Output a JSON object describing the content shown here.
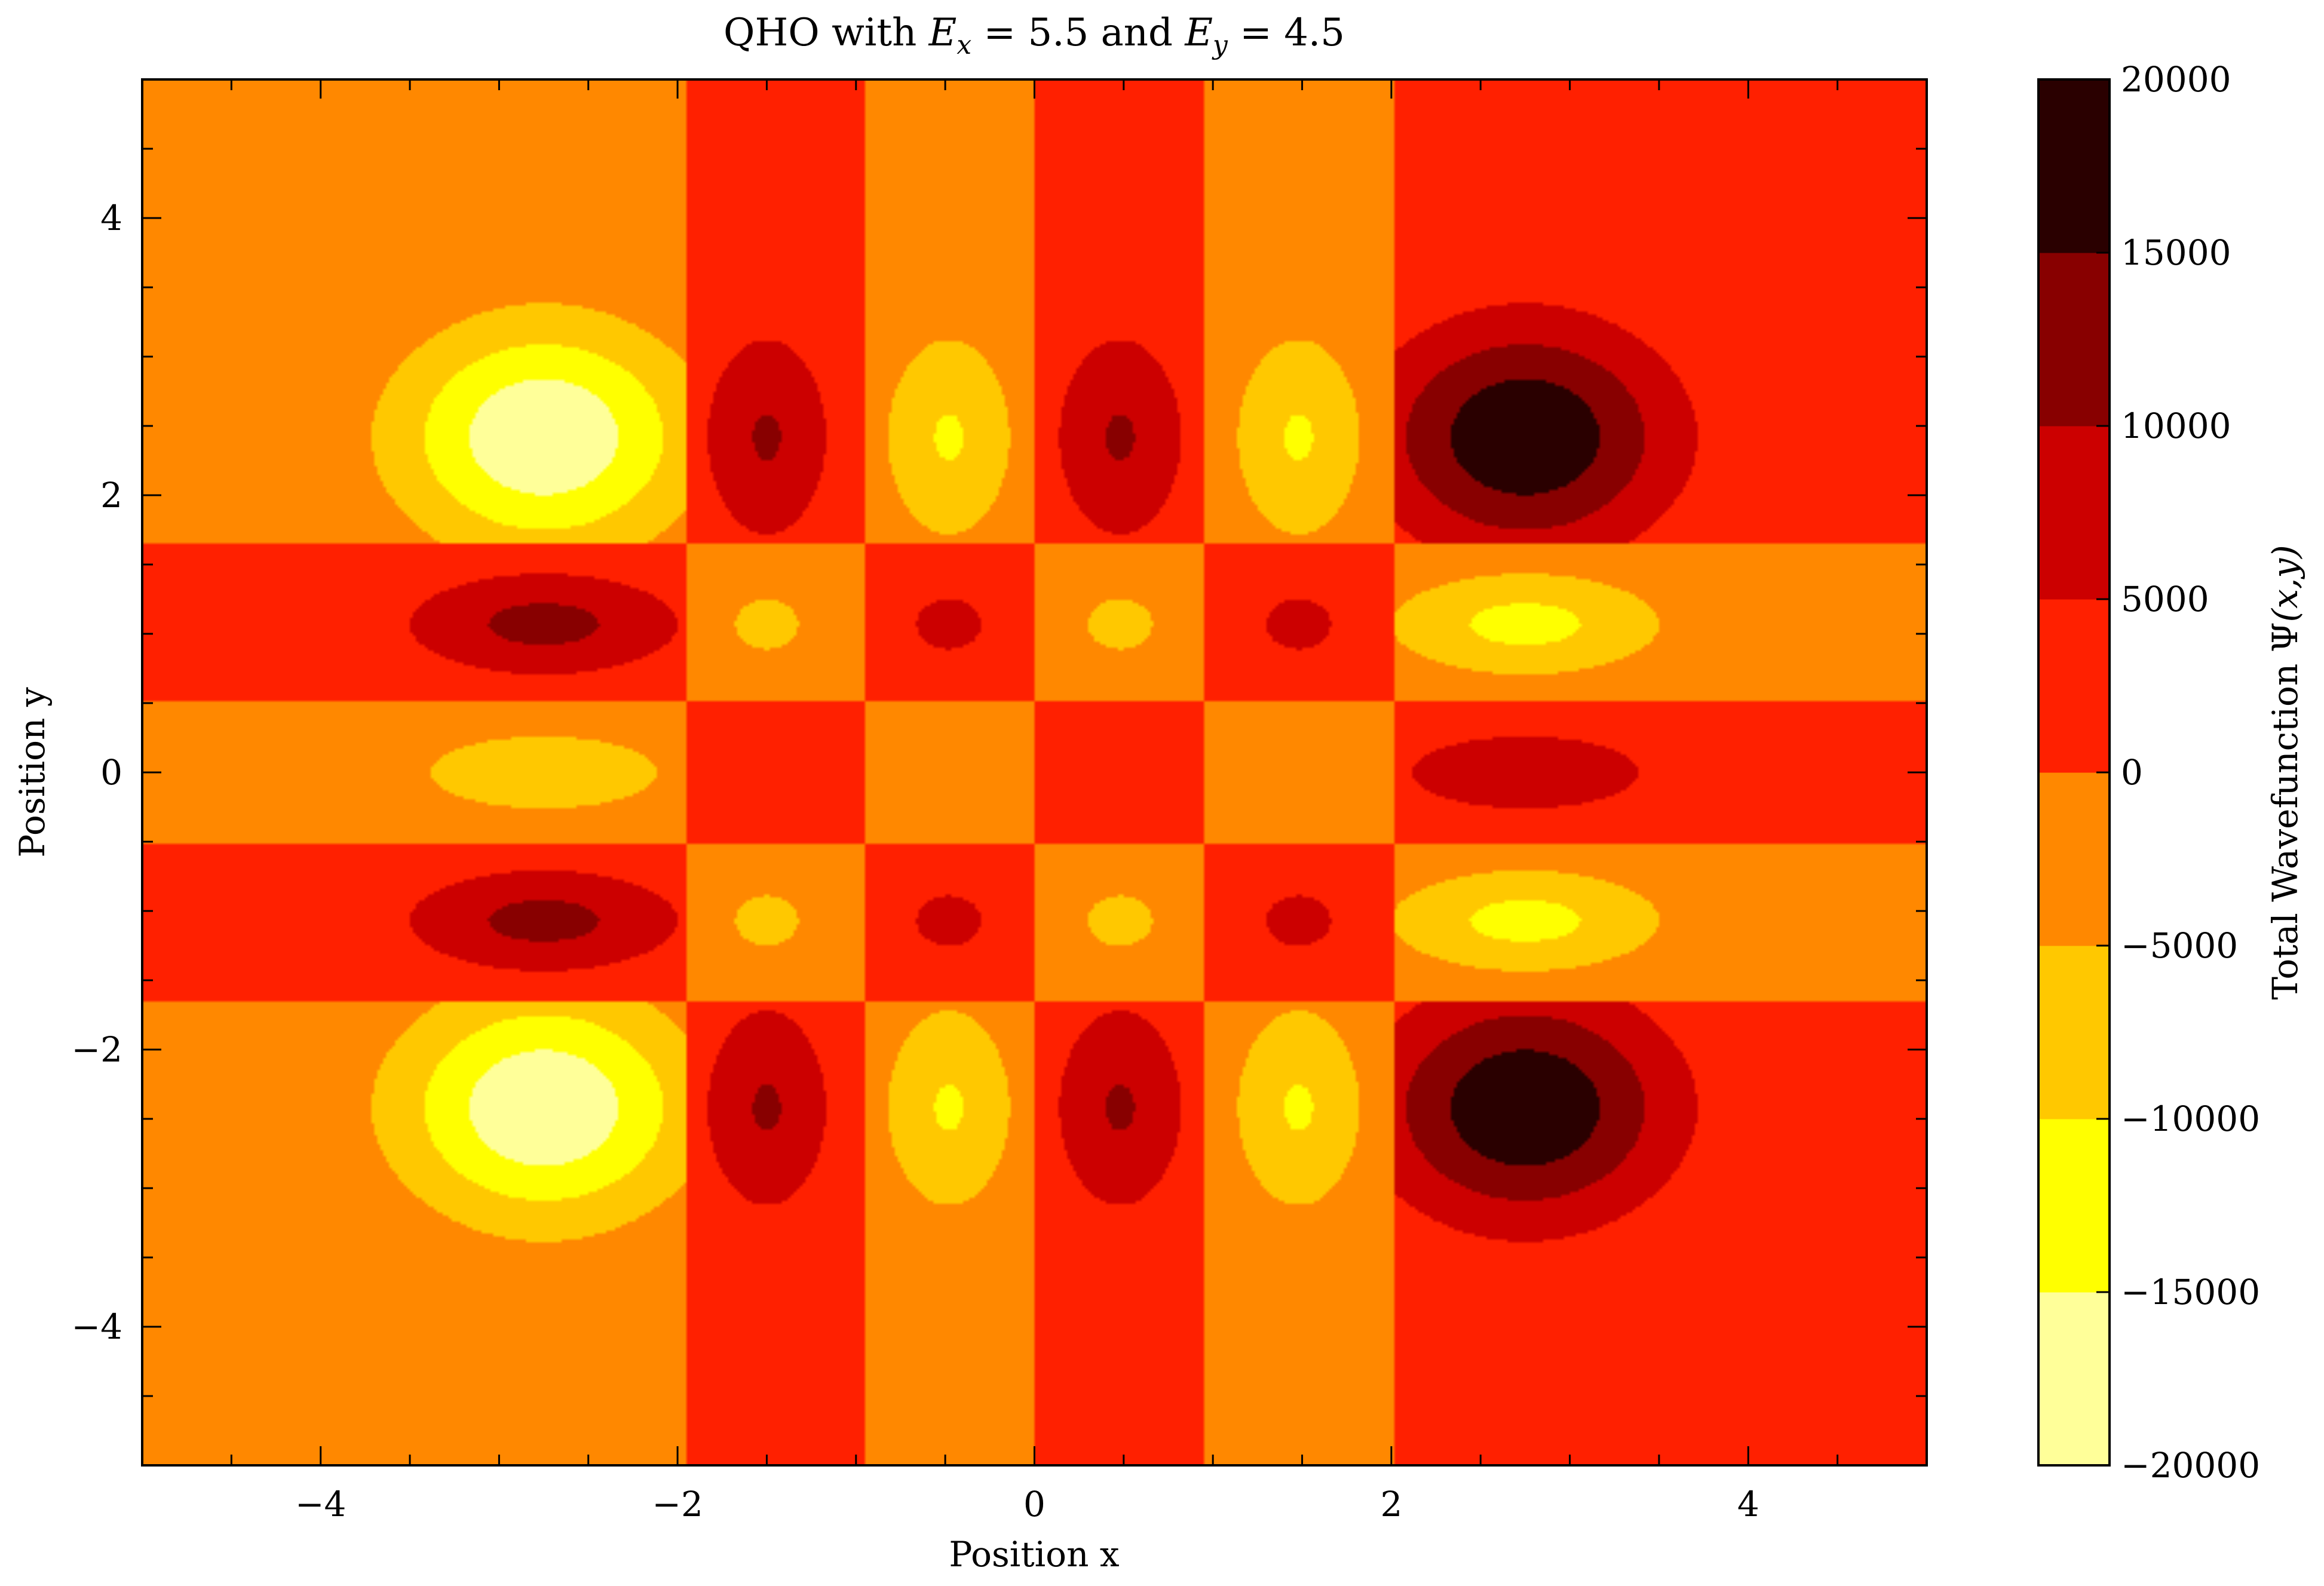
{
  "chart_data": {
    "type": "heatmap",
    "subtype": "filled-contour",
    "title": {
      "prefix": "QHO with ",
      "ex_symbol": "E",
      "ex_sub": "x",
      "ex_value": " = 5.5",
      "joiner": " and ",
      "ey_symbol": "E",
      "ey_sub": "y",
      "ey_value": " = 4.5"
    },
    "xlabel": "Position x",
    "ylabel": "Position y",
    "colorbar_label": {
      "text": "Total Wavefunction Ψ",
      "args": "(x,y)"
    },
    "xlim": [
      -5,
      5
    ],
    "ylim": [
      -5,
      5
    ],
    "x_ticks": [
      -4,
      -2,
      0,
      2,
      4
    ],
    "x_tick_labels": [
      "−4",
      "−2",
      "0",
      "2",
      "4"
    ],
    "y_ticks": [
      -4,
      -2,
      0,
      2,
      4
    ],
    "y_tick_labels": [
      "−4",
      "−2",
      "0",
      "2",
      "4"
    ],
    "colorbar_ticks": [
      20000,
      15000,
      10000,
      5000,
      0,
      -5000,
      -10000,
      -15000,
      -20000
    ],
    "colorbar_tick_labels": [
      "20000",
      "15000",
      "10000",
      "5000",
      "0",
      "−5000",
      "−10000",
      "−15000",
      "−20000"
    ],
    "levels": [
      -20000,
      -15000,
      -10000,
      -5000,
      0,
      5000,
      10000,
      15000,
      20000
    ],
    "level_colors": [
      "#ffff99",
      "#ffff00",
      "#ffc800",
      "#ff8800",
      "#ff2000",
      "#cc0000",
      "#880000",
      "#2a0000"
    ],
    "colormap": "hot_r",
    "x_column_bounds": [
      -5,
      -1.95,
      -0.95,
      0,
      0.95,
      2.02,
      5
    ],
    "y_row_bounds": [
      -5,
      -1.65,
      -0.52,
      0.52,
      1.65,
      5
    ],
    "x_lobe_centers": [
      -2.75,
      -1.5,
      -0.48,
      0.48,
      1.48,
      2.75
    ],
    "y_lobe_centers": [
      -2.42,
      -1.07,
      0,
      1.07,
      2.42
    ],
    "x_lobe_half_widths": [
      0.8,
      0.37,
      0.38,
      0.38,
      0.38,
      0.8
    ],
    "y_lobe_half_heights": [
      0.8,
      0.38,
      0.32,
      0.38,
      0.8
    ],
    "x_lobe_amplitudes": [
      -1.0,
      0.52,
      -0.52,
      0.52,
      -0.52,
      1.0
    ],
    "y_lobe_amplitudes": [
      1.0,
      -0.58,
      0.45,
      -0.58,
      1.0
    ],
    "value_scale": 19500
  }
}
